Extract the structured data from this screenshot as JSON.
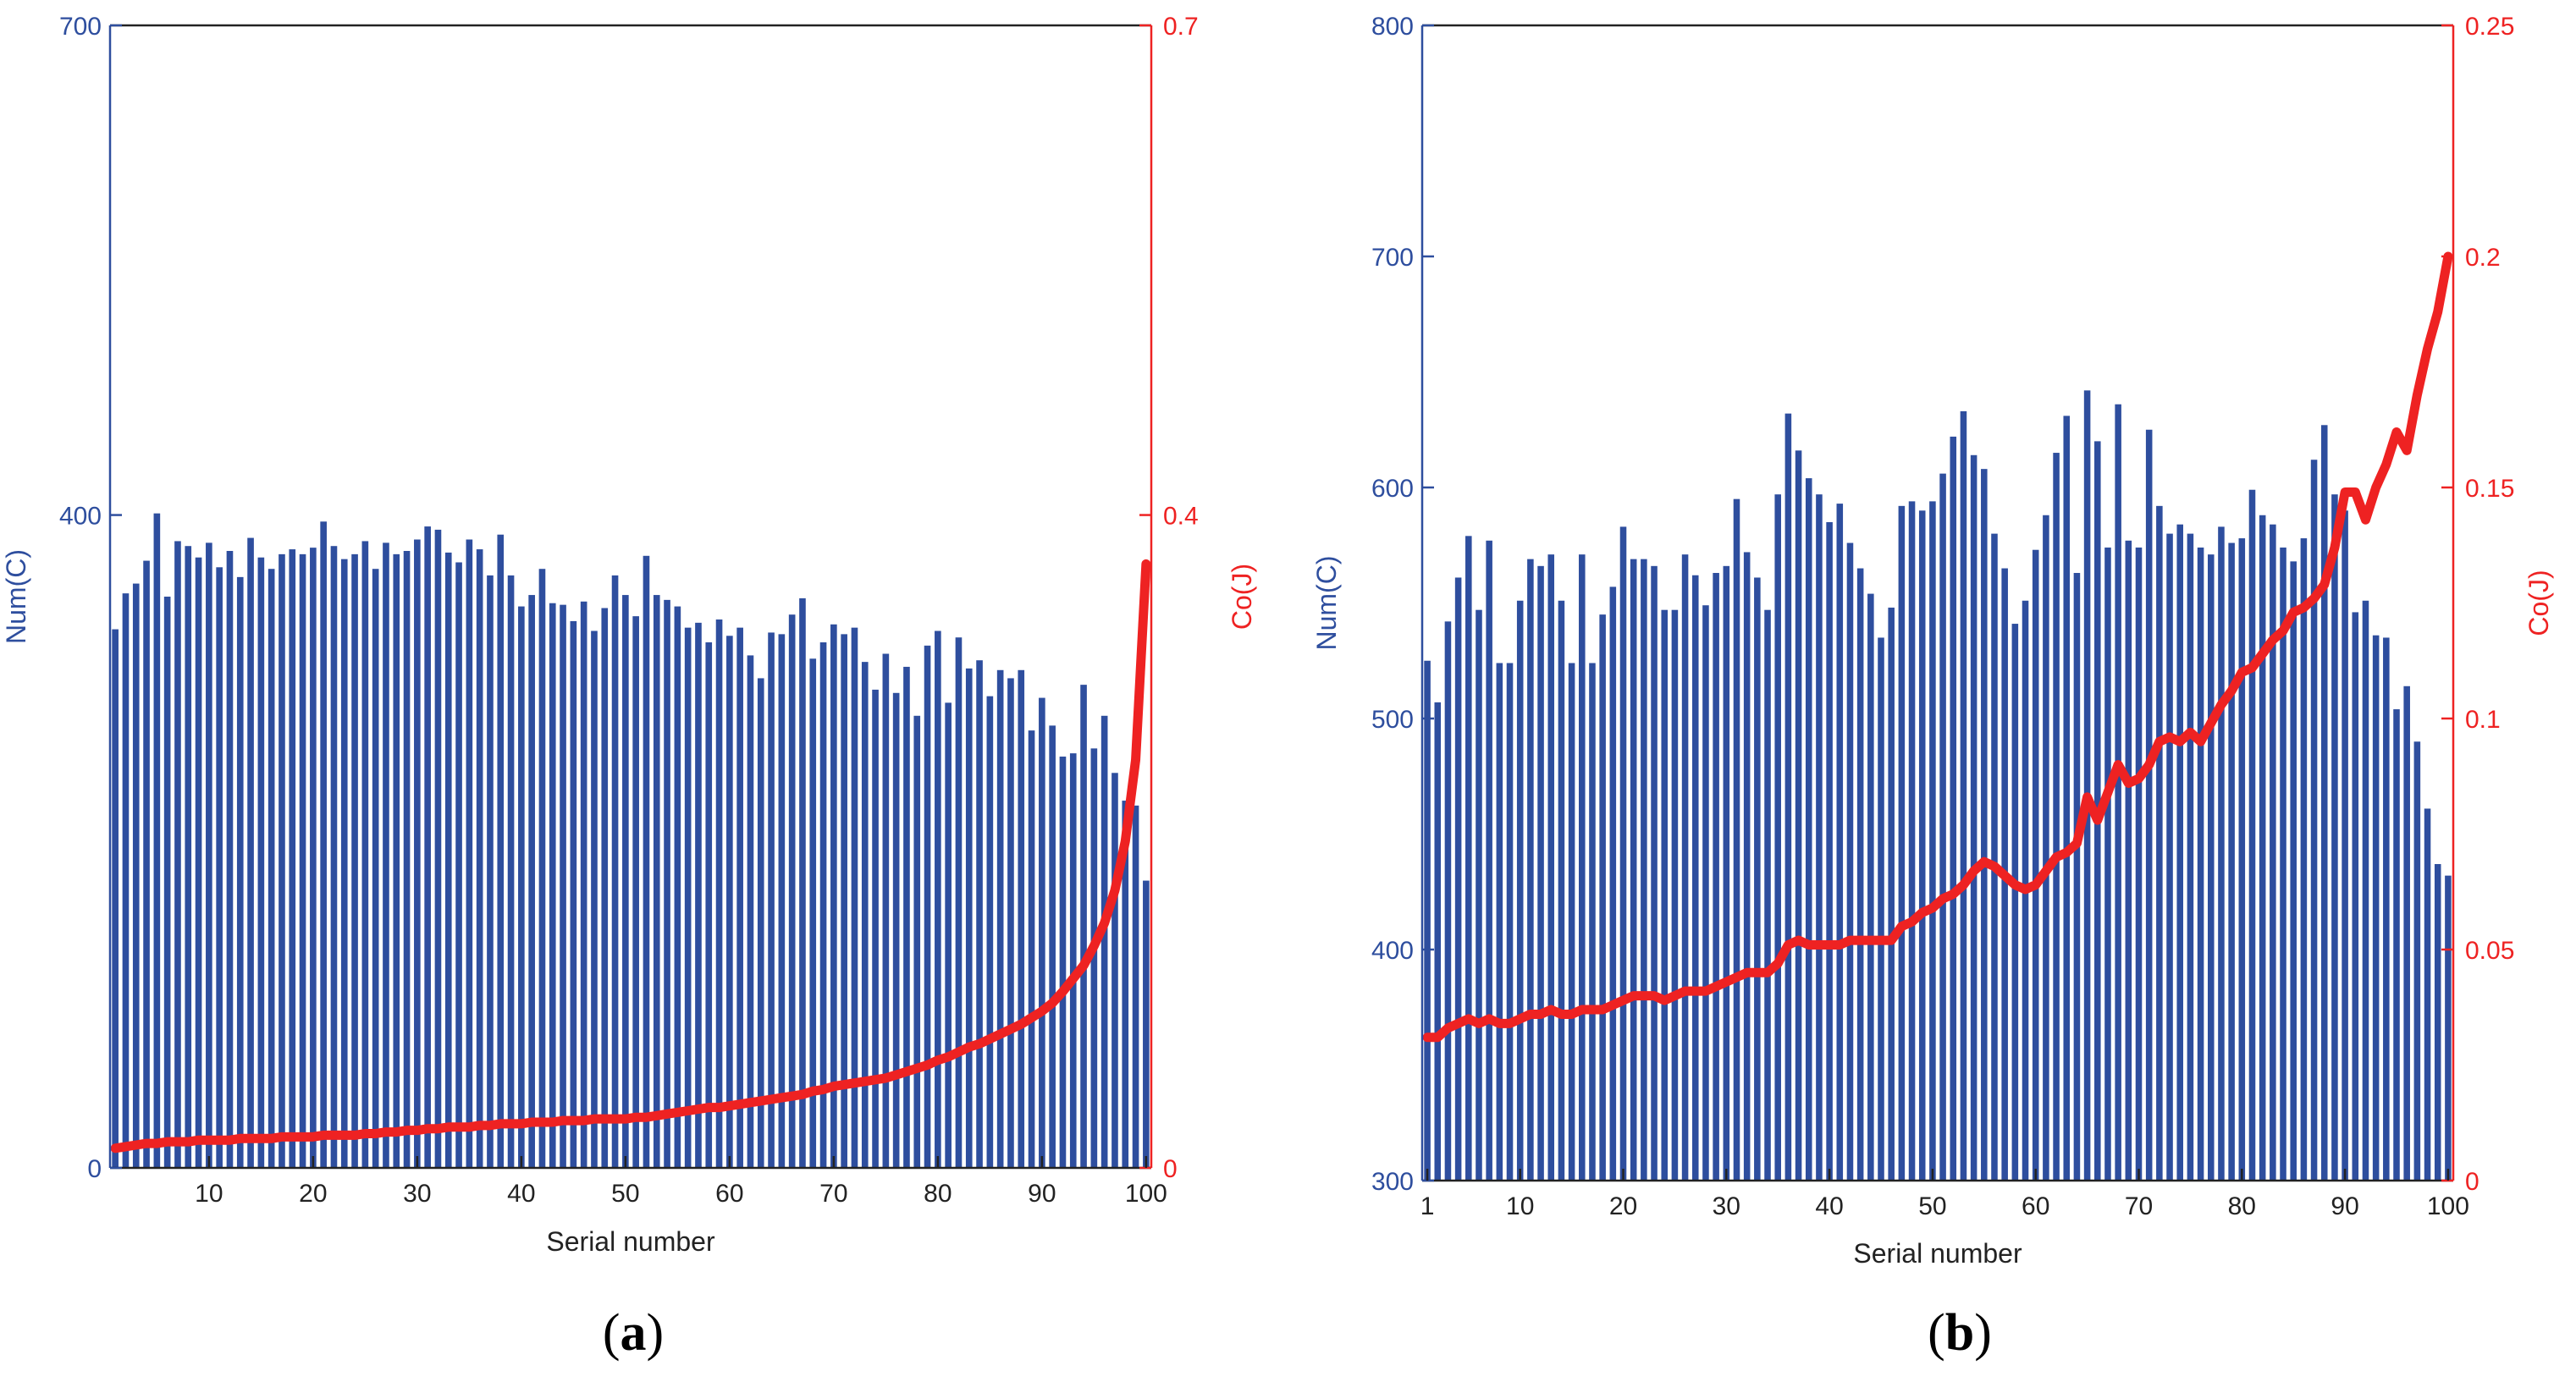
{
  "colors": {
    "bars": "#2E4E9E",
    "line": "#EE2222",
    "left_axis": "#2E4E9E",
    "right_axis": "#EE2222",
    "text": "#222222"
  },
  "panels": [
    {
      "label_open": "(",
      "label_letter": "a",
      "label_close": ")"
    },
    {
      "label_open": "(",
      "label_letter": "b",
      "label_close": ")"
    }
  ],
  "chart_data": [
    {
      "type": "bar",
      "panel": "a",
      "xlabel": "Serial number",
      "ylabel": "Num(C)",
      "y2label": "Co(J)",
      "xlim": [
        1,
        100
      ],
      "ylim": [
        0,
        700
      ],
      "y2lim": [
        0,
        0.7
      ],
      "xticks": [
        10,
        20,
        30,
        40,
        50,
        60,
        70,
        80,
        90,
        100
      ],
      "xtick_labels": [
        "10",
        "20",
        "30",
        "40",
        "50",
        "60",
        "70",
        "80",
        "90",
        "100"
      ],
      "yticks": [
        0,
        400,
        700
      ],
      "ytick_labels": [
        "0",
        "400",
        "700"
      ],
      "y2ticks": [
        0,
        0.4,
        0.7
      ],
      "y2tick_labels": [
        "0",
        "0.4",
        "0.7"
      ],
      "grid": false,
      "x": [
        1,
        2,
        3,
        4,
        5,
        6,
        7,
        8,
        9,
        10,
        11,
        12,
        13,
        14,
        15,
        16,
        17,
        18,
        19,
        20,
        21,
        22,
        23,
        24,
        25,
        26,
        27,
        28,
        29,
        30,
        31,
        32,
        33,
        34,
        35,
        36,
        37,
        38,
        39,
        40,
        41,
        42,
        43,
        44,
        45,
        46,
        47,
        48,
        49,
        50,
        51,
        52,
        53,
        54,
        55,
        56,
        57,
        58,
        59,
        60,
        61,
        62,
        63,
        64,
        65,
        66,
        67,
        68,
        69,
        70,
        71,
        72,
        73,
        74,
        75,
        76,
        77,
        78,
        79,
        80,
        81,
        82,
        83,
        84,
        85,
        86,
        87,
        88,
        89,
        90,
        91,
        92,
        93,
        94,
        95,
        96,
        97,
        98,
        99,
        100
      ],
      "series": [
        {
          "name": "Num(C)",
          "type": "bar",
          "axis": "left",
          "values": [
            330,
            352,
            358,
            372,
            401,
            350,
            384,
            381,
            374,
            383,
            368,
            378,
            362,
            386,
            374,
            367,
            376,
            379,
            376,
            380,
            396,
            381,
            373,
            376,
            384,
            367,
            383,
            376,
            378,
            385,
            393,
            391,
            377,
            371,
            385,
            379,
            363,
            388,
            363,
            344,
            351,
            367,
            346,
            345,
            335,
            347,
            329,
            343,
            363,
            351,
            338,
            375,
            351,
            348,
            344,
            331,
            334,
            322,
            336,
            326,
            331,
            314,
            300,
            328,
            327,
            339,
            349,
            312,
            322,
            333,
            327,
            331,
            310,
            293,
            315,
            291,
            307,
            277,
            320,
            329,
            285,
            325,
            306,
            311,
            289,
            305,
            300,
            305,
            268,
            288,
            271,
            252,
            254,
            296,
            257,
            277,
            242,
            225,
            222,
            176
          ]
        },
        {
          "name": "Co(J)",
          "type": "line",
          "axis": "right",
          "values": [
            0.012,
            0.013,
            0.014,
            0.015,
            0.015,
            0.016,
            0.016,
            0.016,
            0.017,
            0.017,
            0.017,
            0.017,
            0.018,
            0.018,
            0.018,
            0.018,
            0.019,
            0.019,
            0.019,
            0.019,
            0.02,
            0.02,
            0.02,
            0.02,
            0.021,
            0.021,
            0.022,
            0.022,
            0.023,
            0.023,
            0.024,
            0.024,
            0.025,
            0.025,
            0.025,
            0.026,
            0.026,
            0.027,
            0.027,
            0.027,
            0.028,
            0.028,
            0.028,
            0.029,
            0.029,
            0.029,
            0.03,
            0.03,
            0.03,
            0.03,
            0.031,
            0.031,
            0.032,
            0.033,
            0.034,
            0.035,
            0.036,
            0.037,
            0.037,
            0.038,
            0.039,
            0.04,
            0.041,
            0.042,
            0.043,
            0.044,
            0.045,
            0.047,
            0.048,
            0.05,
            0.051,
            0.052,
            0.053,
            0.054,
            0.055,
            0.057,
            0.059,
            0.061,
            0.063,
            0.066,
            0.068,
            0.071,
            0.074,
            0.076,
            0.079,
            0.082,
            0.085,
            0.088,
            0.092,
            0.096,
            0.101,
            0.108,
            0.116,
            0.124,
            0.136,
            0.15,
            0.17,
            0.2,
            0.25,
            0.37
          ]
        }
      ]
    },
    {
      "type": "bar",
      "panel": "b",
      "xlabel": "Serial number",
      "ylabel": "Num(C)",
      "y2label": "Co(J)",
      "xlim": [
        1,
        100
      ],
      "ylim": [
        300,
        800
      ],
      "y2lim": [
        0,
        0.25
      ],
      "xticks": [
        1,
        10,
        20,
        30,
        40,
        50,
        60,
        70,
        80,
        90,
        100
      ],
      "xtick_labels": [
        "1",
        "10",
        "20",
        "30",
        "40",
        "50",
        "60",
        "70",
        "80",
        "90",
        "100"
      ],
      "yticks": [
        300,
        400,
        500,
        600,
        700,
        800
      ],
      "ytick_labels": [
        "300",
        "400",
        "500",
        "600",
        "700",
        "800"
      ],
      "y2ticks": [
        0,
        0.05,
        0.1,
        0.15,
        0.2,
        0.25
      ],
      "y2tick_labels": [
        "0",
        "0.05",
        "0.1",
        "0.15",
        "0.2",
        "0.25"
      ],
      "grid": false,
      "x": [
        1,
        2,
        3,
        4,
        5,
        6,
        7,
        8,
        9,
        10,
        11,
        12,
        13,
        14,
        15,
        16,
        17,
        18,
        19,
        20,
        21,
        22,
        23,
        24,
        25,
        26,
        27,
        28,
        29,
        30,
        31,
        32,
        33,
        34,
        35,
        36,
        37,
        38,
        39,
        40,
        41,
        42,
        43,
        44,
        45,
        46,
        47,
        48,
        49,
        50,
        51,
        52,
        53,
        54,
        55,
        56,
        57,
        58,
        59,
        60,
        61,
        62,
        63,
        64,
        65,
        66,
        67,
        68,
        69,
        70,
        71,
        72,
        73,
        74,
        75,
        76,
        77,
        78,
        79,
        80,
        81,
        82,
        83,
        84,
        85,
        86,
        87,
        88,
        89,
        90,
        91,
        92,
        93,
        94,
        95,
        96,
        97,
        98,
        99,
        100
      ],
      "series": [
        {
          "name": "Num(C)",
          "type": "bar",
          "axis": "left",
          "values": [
            525,
            507,
            542,
            561,
            579,
            547,
            577,
            524,
            524,
            551,
            569,
            566,
            571,
            551,
            524,
            571,
            524,
            545,
            557,
            583,
            569,
            569,
            566,
            547,
            547,
            571,
            562,
            549,
            563,
            566,
            595,
            572,
            561,
            547,
            597,
            632,
            616,
            604,
            597,
            585,
            593,
            576,
            565,
            554,
            535,
            548,
            592,
            594,
            590,
            594,
            606,
            622,
            633,
            614,
            608,
            580,
            565,
            541,
            551,
            573,
            588,
            615,
            631,
            563,
            642,
            620,
            574,
            636,
            577,
            574,
            625,
            592,
            580,
            584,
            580,
            574,
            571,
            583,
            576,
            578,
            599,
            588,
            584,
            574,
            568,
            578,
            612,
            627,
            597,
            590,
            546,
            551,
            536,
            535,
            504,
            514,
            490,
            461,
            437,
            432
          ]
        },
        {
          "name": "Co(J)",
          "type": "line",
          "axis": "right",
          "values": [
            0.031,
            0.031,
            0.033,
            0.034,
            0.035,
            0.034,
            0.035,
            0.034,
            0.034,
            0.035,
            0.036,
            0.036,
            0.037,
            0.036,
            0.036,
            0.037,
            0.037,
            0.037,
            0.038,
            0.039,
            0.04,
            0.04,
            0.04,
            0.039,
            0.04,
            0.041,
            0.041,
            0.041,
            0.042,
            0.043,
            0.044,
            0.045,
            0.045,
            0.045,
            0.047,
            0.051,
            0.052,
            0.051,
            0.051,
            0.051,
            0.051,
            0.052,
            0.052,
            0.052,
            0.052,
            0.052,
            0.055,
            0.056,
            0.058,
            0.059,
            0.061,
            0.062,
            0.064,
            0.067,
            0.069,
            0.068,
            0.066,
            0.064,
            0.063,
            0.064,
            0.067,
            0.07,
            0.071,
            0.073,
            0.083,
            0.078,
            0.084,
            0.09,
            0.086,
            0.087,
            0.09,
            0.095,
            0.096,
            0.095,
            0.097,
            0.095,
            0.099,
            0.103,
            0.106,
            0.11,
            0.111,
            0.114,
            0.117,
            0.119,
            0.123,
            0.124,
            0.126,
            0.129,
            0.137,
            0.149,
            0.149,
            0.143,
            0.15,
            0.155,
            0.162,
            0.158,
            0.17,
            0.18,
            0.188,
            0.2
          ]
        }
      ]
    }
  ]
}
